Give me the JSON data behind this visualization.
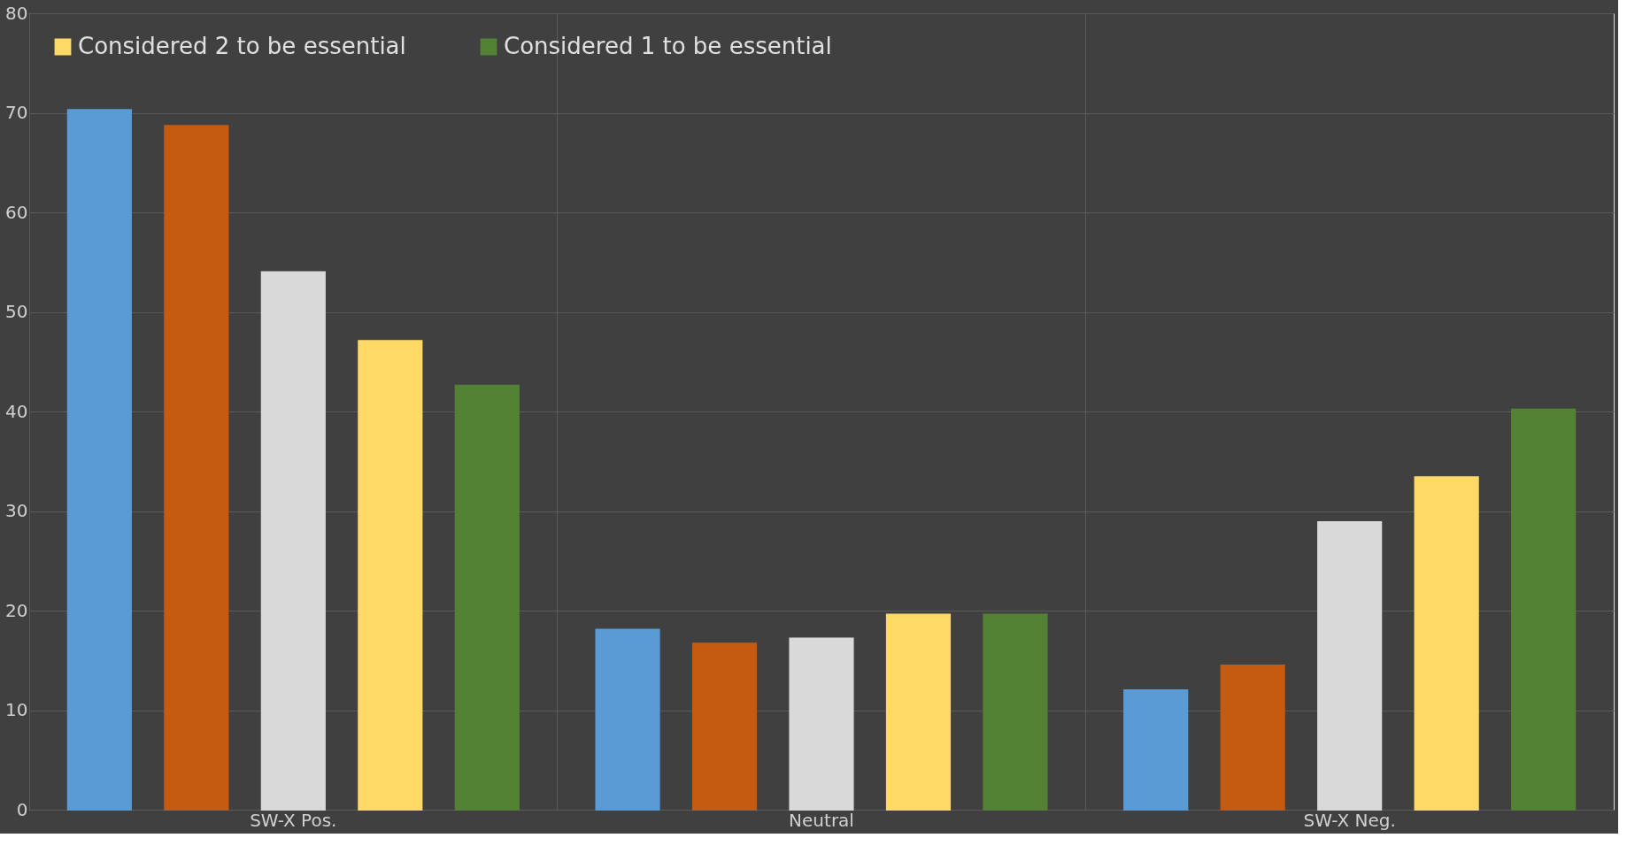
{
  "chart_data": {
    "type": "bar",
    "categories": [
      "SW-X Pos.",
      "Neutral",
      "SW-X Neg."
    ],
    "series": [
      {
        "color": "#5b9bd5",
        "values": [
          70.3,
          18.1,
          12.0
        ]
      },
      {
        "color": "#c55a11",
        "values": [
          68.7,
          16.7,
          14.5
        ]
      },
      {
        "color": "#d9d9d9",
        "values": [
          54.0,
          17.2,
          28.9
        ]
      },
      {
        "name": "Considered 2 to be essential",
        "color": "#ffd966",
        "values": [
          47.1,
          19.6,
          33.4
        ]
      },
      {
        "name": "Considered 1 to be essential",
        "color": "#548235",
        "values": [
          42.6,
          19.6,
          40.2
        ]
      }
    ],
    "ylim": [
      0,
      80
    ],
    "yticks": [
      0,
      10,
      20,
      30,
      40,
      50,
      60,
      70,
      80
    ],
    "grid": true,
    "legend": "top left"
  }
}
